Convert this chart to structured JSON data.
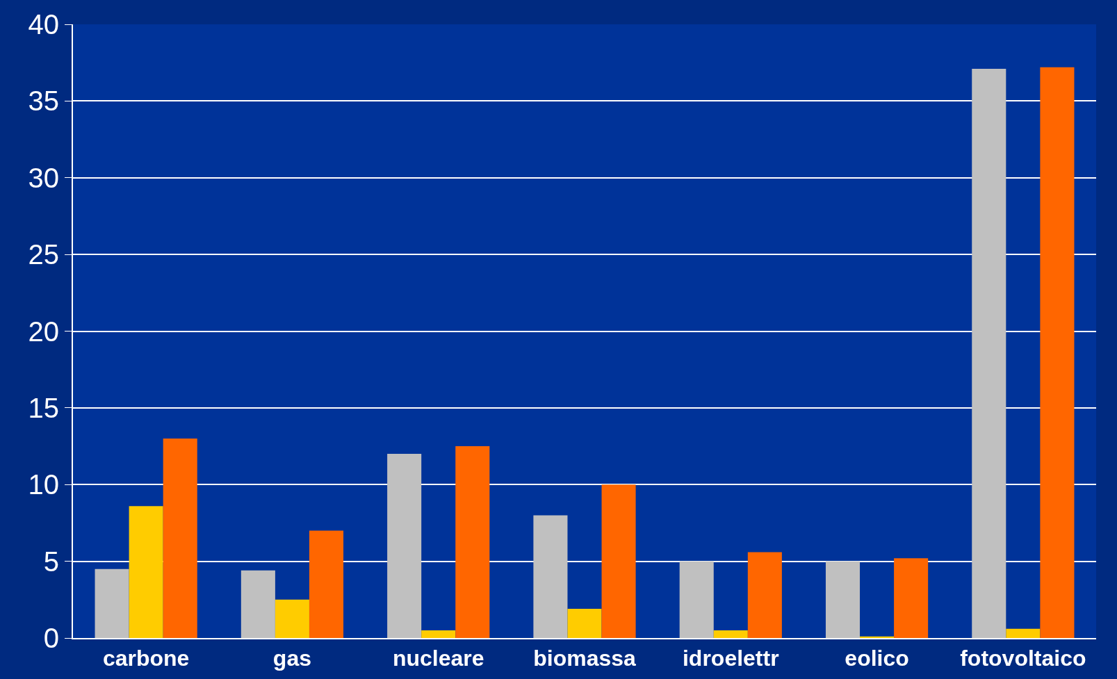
{
  "chart_data": {
    "type": "bar",
    "categories": [
      "carbone",
      "gas",
      "nucleare",
      "biomassa",
      "idroelettr",
      "eolico",
      "fotovoltaico"
    ],
    "series": [
      {
        "color": "#c0c0c0",
        "values": [
          4.5,
          4.4,
          12.0,
          8.0,
          5.0,
          5.0,
          37.1
        ]
      },
      {
        "color": "#ffcc00",
        "values": [
          8.6,
          2.5,
          0.5,
          1.9,
          0.5,
          0.1,
          0.6
        ]
      },
      {
        "color": "#ff6600",
        "values": [
          13.0,
          7.0,
          12.5,
          10.0,
          5.6,
          5.2,
          37.2
        ]
      }
    ],
    "ylim": [
      0,
      40
    ],
    "yticks": [
      0,
      5,
      10,
      15,
      20,
      25,
      30,
      35,
      40
    ],
    "grid": "y"
  }
}
